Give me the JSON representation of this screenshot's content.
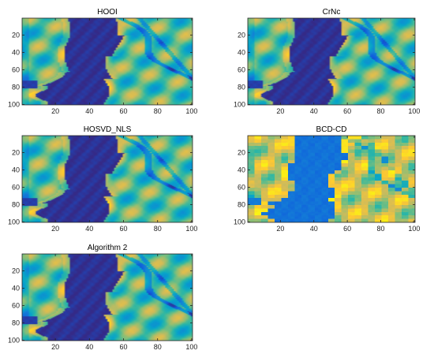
{
  "figure_title": "",
  "colormap": {
    "name": "parula",
    "stops": [
      "#352a87",
      "#0f5cdd",
      "#1481d6",
      "#06a4ca",
      "#2eb7a4",
      "#87bf77",
      "#d1bb59",
      "#fec832",
      "#f9fb0e"
    ]
  },
  "chart_data": [
    {
      "type": "heatmap",
      "title": "HOOI",
      "variant": "smooth",
      "xlim": [
        1,
        100
      ],
      "ylim": [
        1,
        100
      ],
      "xticks": [
        20,
        40,
        60,
        80,
        100
      ],
      "yticks": [
        20,
        40,
        60,
        80,
        100
      ],
      "y_direction": "reverse",
      "xlabel": "",
      "ylabel": "",
      "grid": false
    },
    {
      "type": "heatmap",
      "title": "CrNc",
      "variant": "smooth",
      "xlim": [
        1,
        100
      ],
      "ylim": [
        1,
        100
      ],
      "xticks": [
        20,
        40,
        60,
        80,
        100
      ],
      "yticks": [
        20,
        40,
        60,
        80,
        100
      ],
      "y_direction": "reverse",
      "xlabel": "",
      "ylabel": "",
      "grid": false
    },
    {
      "type": "heatmap",
      "title": "HOSVD_NLS",
      "variant": "smooth",
      "xlim": [
        1,
        100
      ],
      "ylim": [
        1,
        100
      ],
      "xticks": [
        20,
        40,
        60,
        80,
        100
      ],
      "yticks": [
        20,
        40,
        60,
        80,
        100
      ],
      "y_direction": "reverse",
      "xlabel": "",
      "ylabel": "",
      "grid": false
    },
    {
      "type": "heatmap",
      "title": "BCD-CD",
      "variant": "blocky",
      "xlim": [
        1,
        100
      ],
      "ylim": [
        1,
        100
      ],
      "xticks": [
        20,
        40,
        60,
        80,
        100
      ],
      "yticks": [
        20,
        40,
        60,
        80,
        100
      ],
      "y_direction": "reverse",
      "xlabel": "",
      "ylabel": "",
      "grid": false
    },
    {
      "type": "heatmap",
      "title": "Algorithm 2",
      "variant": "smooth",
      "xlim": [
        1,
        100
      ],
      "ylim": [
        1,
        100
      ],
      "xticks": [
        20,
        40,
        60,
        80,
        100
      ],
      "yticks": [
        20,
        40,
        60,
        80,
        100
      ],
      "y_direction": "reverse",
      "xlabel": "",
      "ylabel": "",
      "grid": false
    }
  ]
}
